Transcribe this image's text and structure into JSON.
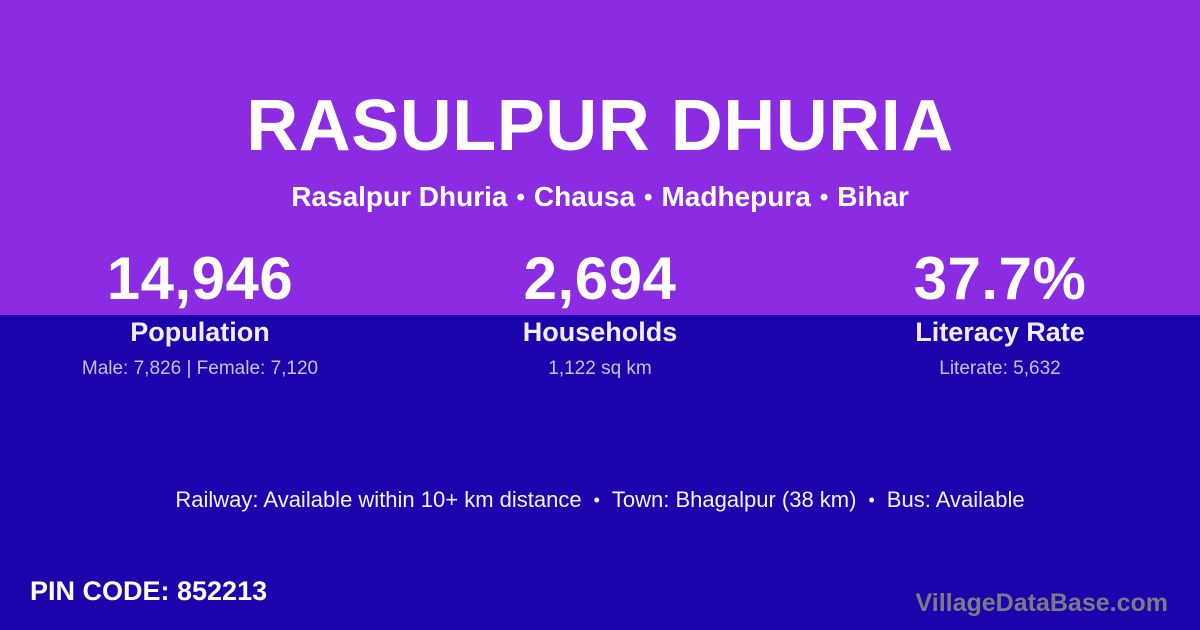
{
  "colors": {
    "top_background": "#8B2BE2",
    "bottom_background": "#1B04AB",
    "text_primary": "#FFFFFF",
    "text_detail": "#C7C2E2",
    "watermark_gray": "#7B7B85"
  },
  "header": {
    "title": "RASULPUR DHURIA",
    "breadcrumb": {
      "separator": "•",
      "items": [
        "Rasalpur Dhuria",
        "Chausa",
        "Madhepura",
        "Bihar"
      ]
    }
  },
  "stats": [
    {
      "value": "14,946",
      "label": "Population",
      "detail": "Male: 7,826 | Female: 7,120"
    },
    {
      "value": "2,694",
      "label": "Households",
      "detail": "1,122 sq km"
    },
    {
      "value": "37.7%",
      "label": "Literacy Rate",
      "detail": "Literate: 5,632"
    }
  ],
  "transport": {
    "separator": "•",
    "items": [
      "Railway: Available within 10+ km distance",
      "Town: Bhagalpur (38 km)",
      "Bus: Available"
    ]
  },
  "footer": {
    "pin_code": "PIN CODE: 852213",
    "watermark": "VillageDataBase.com"
  }
}
